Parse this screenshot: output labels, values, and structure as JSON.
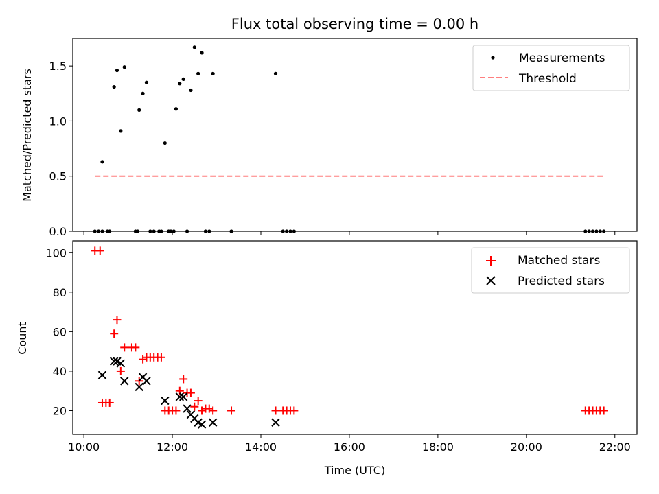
{
  "chart_data": [
    {
      "type": "scatter",
      "title": "Flux total observing time = 0.00 h",
      "xlabel": "",
      "ylabel": "Matched/Predicted stars",
      "xlim": [
        "09:45",
        "22:30"
      ],
      "ylim": [
        0,
        1.75
      ],
      "yticks": [
        0.0,
        0.5,
        1.0,
        1.5
      ],
      "ytick_labels": [
        "0.0",
        "0.5",
        "1.0",
        "1.5"
      ],
      "xticks": [
        "10:00",
        "12:00",
        "14:00",
        "16:00",
        "18:00",
        "20:00",
        "22:00"
      ],
      "show_xtick_labels": false,
      "grid": false,
      "legend_position": "top-right",
      "series": [
        {
          "name": "Measurements",
          "marker": "dot",
          "color": "#000000",
          "points": [
            [
              "10:15",
              0
            ],
            [
              "10:20",
              0
            ],
            [
              "10:25",
              0
            ],
            [
              "10:32",
              0
            ],
            [
              "10:35",
              0
            ],
            [
              "10:25",
              0.63
            ],
            [
              "10:41",
              1.31
            ],
            [
              "10:45",
              1.46
            ],
            [
              "10:50",
              0.91
            ],
            [
              "10:55",
              1.49
            ],
            [
              "11:10",
              0
            ],
            [
              "11:13",
              0
            ],
            [
              "11:15",
              1.1
            ],
            [
              "11:20",
              1.25
            ],
            [
              "11:25",
              1.35
            ],
            [
              "11:30",
              0
            ],
            [
              "11:35",
              0
            ],
            [
              "11:42",
              0
            ],
            [
              "11:45",
              0
            ],
            [
              "11:50",
              0.8
            ],
            [
              "11:55",
              0
            ],
            [
              "11:58",
              0
            ],
            [
              "12:02",
              0
            ],
            [
              "12:05",
              1.11
            ],
            [
              "12:10",
              1.34
            ],
            [
              "12:15",
              1.38
            ],
            [
              "12:20",
              0
            ],
            [
              "12:25",
              1.28
            ],
            [
              "12:30",
              1.67
            ],
            [
              "12:35",
              1.43
            ],
            [
              "12:40",
              1.62
            ],
            [
              "12:45",
              0
            ],
            [
              "12:50",
              0
            ],
            [
              "12:55",
              1.43
            ],
            [
              "13:20",
              0
            ],
            [
              "14:20",
              1.43
            ],
            [
              "14:30",
              0
            ],
            [
              "14:35",
              0
            ],
            [
              "14:40",
              0
            ],
            [
              "14:45",
              0
            ],
            [
              "21:20",
              0
            ],
            [
              "21:25",
              0
            ],
            [
              "21:30",
              0
            ],
            [
              "21:35",
              0
            ],
            [
              "21:40",
              0
            ],
            [
              "21:45",
              0
            ]
          ]
        },
        {
          "name": "Threshold",
          "type": "line",
          "style": "dashed",
          "color": "#ff7f7f",
          "points": [
            [
              "10:15",
              0.5
            ],
            [
              "21:45",
              0.5
            ]
          ]
        }
      ]
    },
    {
      "type": "scatter",
      "title": "",
      "xlabel": "Time (UTC)",
      "ylabel": "Count",
      "xlim": [
        "09:45",
        "22:30"
      ],
      "ylim": [
        8,
        106
      ],
      "yticks": [
        20,
        40,
        60,
        80,
        100
      ],
      "ytick_labels": [
        "20",
        "40",
        "60",
        "80",
        "100"
      ],
      "xticks": [
        "10:00",
        "12:00",
        "14:00",
        "16:00",
        "18:00",
        "20:00",
        "22:00"
      ],
      "xtick_labels": [
        "10:00",
        "12:00",
        "14:00",
        "16:00",
        "18:00",
        "20:00",
        "22:00"
      ],
      "grid": false,
      "legend_position": "top-right",
      "series": [
        {
          "name": "Matched stars",
          "marker": "plus",
          "color": "#ff0000",
          "points": [
            [
              "10:15",
              101
            ],
            [
              "10:22",
              101
            ],
            [
              "10:25",
              24
            ],
            [
              "10:30",
              24
            ],
            [
              "10:35",
              24
            ],
            [
              "10:41",
              59
            ],
            [
              "10:45",
              66
            ],
            [
              "10:50",
              40
            ],
            [
              "10:55",
              52
            ],
            [
              "11:05",
              52
            ],
            [
              "11:10",
              52
            ],
            [
              "11:15",
              35
            ],
            [
              "11:20",
              46
            ],
            [
              "11:25",
              47
            ],
            [
              "11:30",
              47
            ],
            [
              "11:35",
              47
            ],
            [
              "11:40",
              47
            ],
            [
              "11:45",
              47
            ],
            [
              "11:50",
              20
            ],
            [
              "11:55",
              20
            ],
            [
              "12:00",
              20
            ],
            [
              "12:05",
              20
            ],
            [
              "12:10",
              30
            ],
            [
              "12:15",
              36
            ],
            [
              "12:20",
              29
            ],
            [
              "12:25",
              29
            ],
            [
              "12:30",
              22
            ],
            [
              "12:35",
              25
            ],
            [
              "12:40",
              20
            ],
            [
              "12:45",
              21
            ],
            [
              "12:50",
              21
            ],
            [
              "12:55",
              20
            ],
            [
              "13:20",
              20
            ],
            [
              "14:20",
              20
            ],
            [
              "14:30",
              20
            ],
            [
              "14:35",
              20
            ],
            [
              "14:40",
              20
            ],
            [
              "14:45",
              20
            ],
            [
              "21:20",
              20
            ],
            [
              "21:25",
              20
            ],
            [
              "21:30",
              20
            ],
            [
              "21:35",
              20
            ],
            [
              "21:40",
              20
            ],
            [
              "21:45",
              20
            ]
          ]
        },
        {
          "name": "Predicted stars",
          "marker": "x",
          "color": "#000000",
          "points": [
            [
              "10:25",
              38
            ],
            [
              "10:41",
              45
            ],
            [
              "10:45",
              45
            ],
            [
              "10:50",
              44
            ],
            [
              "10:55",
              35
            ],
            [
              "11:15",
              32
            ],
            [
              "11:20",
              37
            ],
            [
              "11:25",
              35
            ],
            [
              "11:50",
              25
            ],
            [
              "12:10",
              27
            ],
            [
              "12:15",
              27
            ],
            [
              "12:20",
              21
            ],
            [
              "12:25",
              18
            ],
            [
              "12:30",
              16
            ],
            [
              "12:35",
              14
            ],
            [
              "12:40",
              13
            ],
            [
              "12:55",
              14
            ],
            [
              "14:20",
              14
            ]
          ]
        }
      ]
    }
  ]
}
